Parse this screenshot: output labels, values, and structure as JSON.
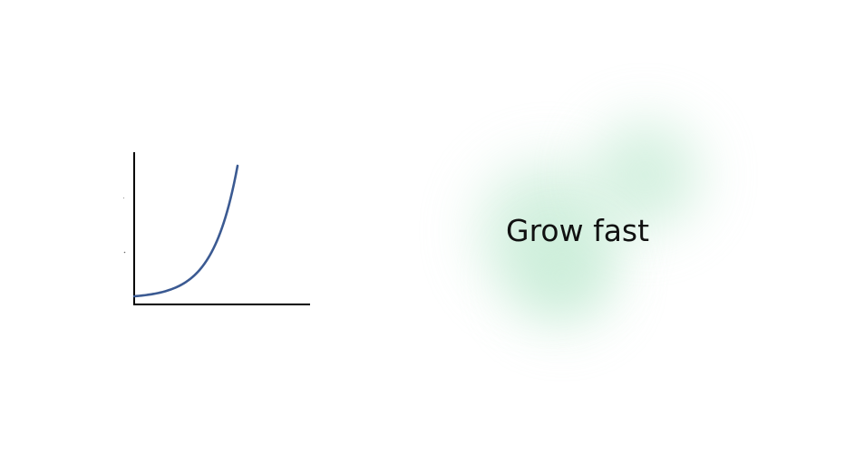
{
  "colors": {
    "background": "#ffffff",
    "axis": "#000000",
    "curve": "#3b5a92",
    "glow": "#c7ecd6"
  },
  "figure": {
    "type": "exponential-growth-curve",
    "shape": "exponential"
  },
  "slogan": {
    "text": "Grow fast"
  }
}
